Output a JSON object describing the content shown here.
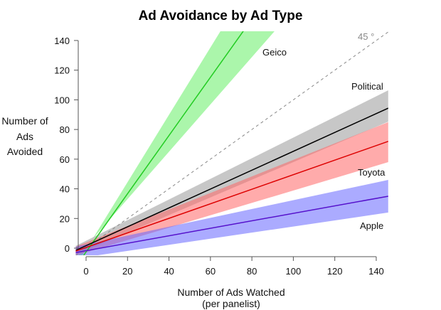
{
  "chart_data": {
    "type": "line",
    "title": "Ad Avoidance by Ad Type",
    "xlabel": [
      "Number of Ads Watched",
      "(per panelist)"
    ],
    "ylabel": [
      "Number of",
      "Ads",
      "Avoided"
    ],
    "xlim": [
      -5,
      145.8
    ],
    "ylim": [
      -4.8,
      146.2
    ],
    "xticks": [
      0,
      20,
      40,
      60,
      80,
      100,
      120,
      140
    ],
    "yticks": [
      0,
      20,
      40,
      60,
      80,
      100,
      120,
      140
    ],
    "grid": false,
    "reference_line": {
      "label": "45 °",
      "slope": 1,
      "intercept": 0,
      "style": "dashed",
      "color": "#888888"
    },
    "series": [
      {
        "name": "Geico",
        "color": "#22cc22",
        "band_color": "#66ee66",
        "x": [
          -5,
          145.8
        ],
        "fit": [
          -12.4,
          283.6
        ],
        "upper": [
          -12.3,
          330.1
        ],
        "lower": [
          -6.8,
          233.8
        ]
      },
      {
        "name": "Political",
        "color": "#000000",
        "band_color": "#999999",
        "x": [
          -5,
          145.8
        ],
        "fit": [
          -1.5,
          94.4
        ],
        "upper": [
          1.5,
          106.4
        ],
        "lower": [
          -4.5,
          85.3
        ]
      },
      {
        "name": "Toyota",
        "color": "#dd0000",
        "band_color": "#ff6666",
        "x": [
          -5,
          145.8
        ],
        "fit": [
          -2.0,
          72.0
        ],
        "upper": [
          1.0,
          85.0
        ],
        "lower": [
          -5.0,
          58.0
        ]
      },
      {
        "name": "Apple",
        "color": "#5511cc",
        "band_color": "#6666ff",
        "x": [
          -5,
          145.8
        ],
        "fit": [
          -3.0,
          35.0
        ],
        "upper": [
          1.0,
          46.0
        ],
        "lower": [
          -7.0,
          24.0
        ]
      }
    ],
    "legend": "direct-labels-right"
  }
}
